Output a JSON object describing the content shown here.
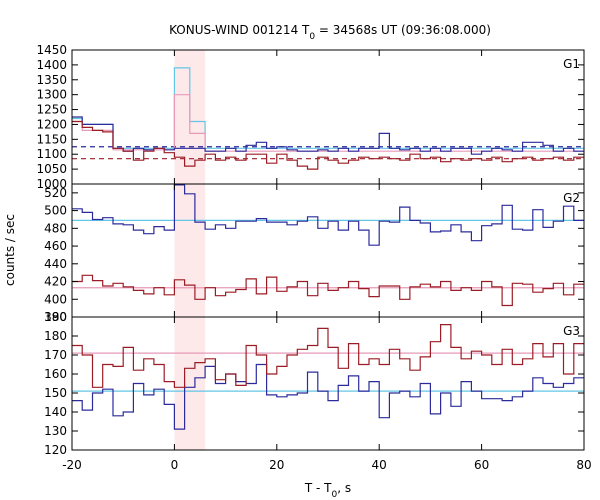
{
  "chart_data": {
    "type": "line",
    "title": "KONUS-WIND 001214 T",
    "title_sub": "0",
    "title_rest": " = 34568s UT (09:36:08.000)",
    "xlabel": "T - T",
    "xlabel_sub": "0",
    "xlabel_rest": ", s",
    "ylabel": "counts / sec",
    "xlim": [
      -20,
      80
    ],
    "xticks": [
      -20,
      0,
      20,
      40,
      60,
      80
    ],
    "highlight": {
      "x0": 0,
      "x1": 6,
      "color": "#fde8ea"
    },
    "colors": {
      "blue": "#2b2b9c",
      "red": "#9c1c25",
      "cyan": "#63c6e6",
      "pink": "#e79ab8"
    },
    "panels": [
      {
        "label": "G1",
        "ylim": [
          1000,
          1450
        ],
        "yticks": [
          1000,
          1050,
          1100,
          1150,
          1200,
          1250,
          1300,
          1350,
          1400,
          1450
        ],
        "bkg": [
          {
            "value": 1125,
            "color": "blue",
            "dashed": true
          },
          {
            "value": 1085,
            "color": "red",
            "dashed": true
          }
        ],
        "series": [
          {
            "color": "cyan",
            "edges": [
              -20,
              -18,
              -12,
              0,
              3,
              6,
              80
            ],
            "values": [
              1220,
              1200,
              1120,
              1390,
              1210,
              1120
            ]
          },
          {
            "color": "pink",
            "edges": [
              -20,
              -18,
              -12,
              0,
              3,
              6,
              80
            ],
            "values": [
              1210,
              1180,
              1115,
              1300,
              1170,
              1110
            ]
          },
          {
            "color": "blue",
            "edges": [
              -20,
              -18,
              -16,
              -14,
              -12,
              -10,
              -8,
              -6,
              -4,
              -2,
              0,
              2,
              4,
              6,
              8,
              10,
              12,
              14,
              16,
              18,
              20,
              22,
              24,
              26,
              28,
              30,
              32,
              34,
              36,
              38,
              40,
              42,
              44,
              46,
              48,
              50,
              52,
              54,
              56,
              58,
              60,
              62,
              64,
              66,
              68,
              70,
              72,
              74,
              76,
              78,
              80
            ],
            "values": [
              1225,
              1200,
              1200,
              1200,
              1120,
              1110,
              1120,
              1115,
              1120,
              1115,
              1120,
              1120,
              1120,
              1110,
              1110,
              1120,
              1110,
              1130,
              1140,
              1120,
              1125,
              1115,
              1110,
              1110,
              1115,
              1110,
              1120,
              1110,
              1120,
              1120,
              1170,
              1120,
              1115,
              1120,
              1110,
              1120,
              1110,
              1120,
              1120,
              1100,
              1110,
              1120,
              1115,
              1110,
              1140,
              1140,
              1130,
              1110,
              1120,
              1110
            ]
          },
          {
            "color": "red",
            "edges": [
              -20,
              -18,
              -16,
              -14,
              -12,
              -10,
              -8,
              -6,
              -4,
              -2,
              0,
              2,
              4,
              6,
              8,
              10,
              12,
              14,
              16,
              18,
              20,
              22,
              24,
              26,
              28,
              30,
              32,
              34,
              36,
              38,
              40,
              42,
              44,
              46,
              48,
              50,
              52,
              54,
              56,
              58,
              60,
              62,
              64,
              66,
              68,
              70,
              72,
              74,
              76,
              78,
              80
            ],
            "values": [
              1210,
              1190,
              1180,
              1175,
              1120,
              1110,
              1080,
              1110,
              1120,
              1105,
              1090,
              1060,
              1080,
              1100,
              1080,
              1090,
              1080,
              1100,
              1100,
              1070,
              1100,
              1080,
              1060,
              1050,
              1090,
              1080,
              1070,
              1080,
              1090,
              1085,
              1090,
              1085,
              1080,
              1100,
              1085,
              1090,
              1075,
              1085,
              1080,
              1085,
              1080,
              1090,
              1075,
              1085,
              1090,
              1080,
              1085,
              1090,
              1080,
              1090
            ]
          }
        ]
      },
      {
        "label": "G2",
        "ylim": [
          380,
          530
        ],
        "yticks": [
          380,
          400,
          420,
          440,
          460,
          480,
          500,
          520
        ],
        "bkg": [
          {
            "value": 489,
            "color": "cyan",
            "dashed": false
          },
          {
            "value": 413,
            "color": "pink",
            "dashed": false
          }
        ],
        "series": [
          {
            "color": "blue",
            "edges": [
              -20,
              -18,
              -16,
              -14,
              -12,
              -10,
              -8,
              -6,
              -4,
              -2,
              0,
              2,
              4,
              6,
              8,
              10,
              12,
              14,
              16,
              18,
              20,
              22,
              24,
              26,
              28,
              30,
              32,
              34,
              36,
              38,
              40,
              42,
              44,
              46,
              48,
              50,
              52,
              54,
              56,
              58,
              60,
              62,
              64,
              66,
              68,
              70,
              72,
              74,
              76,
              78,
              80
            ],
            "values": [
              502,
              498,
              490,
              492,
              485,
              484,
              478,
              474,
              482,
              478,
              529,
              519,
              487,
              479,
              484,
              480,
              488,
              488,
              491,
              487,
              487,
              484,
              488,
              493,
              480,
              488,
              478,
              488,
              478,
              461,
              488,
              487,
              504,
              489,
              486,
              476,
              477,
              484,
              476,
              466,
              483,
              485,
              506,
              479,
              478,
              501,
              481,
              488,
              505,
              489
            ]
          },
          {
            "color": "red",
            "edges": [
              -20,
              -18,
              -16,
              -14,
              -12,
              -10,
              -8,
              -6,
              -4,
              -2,
              0,
              2,
              4,
              6,
              8,
              10,
              12,
              14,
              16,
              18,
              20,
              22,
              24,
              26,
              28,
              30,
              32,
              34,
              36,
              38,
              40,
              42,
              44,
              46,
              48,
              50,
              52,
              54,
              56,
              58,
              60,
              62,
              64,
              66,
              68,
              70,
              72,
              74,
              76,
              78,
              80
            ],
            "values": [
              420,
              427,
              421,
              415,
              418,
              414,
              410,
              406,
              413,
              405,
              422,
              416,
              400,
              413,
              404,
              408,
              411,
              423,
              406,
              425,
              409,
              414,
              420,
              404,
              418,
              410,
              413,
              420,
              412,
              403,
              415,
              415,
              400,
              414,
              417,
              414,
              420,
              410,
              413,
              410,
              420,
              414,
              393,
              418,
              417,
              408,
              412,
              418,
              405,
              417
            ]
          }
        ]
      },
      {
        "label": "G3",
        "ylim": [
          120,
          190
        ],
        "yticks": [
          120,
          130,
          140,
          150,
          160,
          170,
          180,
          190
        ],
        "bkg": [
          {
            "value": 151,
            "color": "cyan",
            "dashed": false
          },
          {
            "value": 171,
            "color": "pink",
            "dashed": false
          }
        ],
        "series": [
          {
            "color": "blue",
            "edges": [
              -20,
              -18,
              -16,
              -14,
              -12,
              -10,
              -8,
              -6,
              -4,
              -2,
              0,
              2,
              4,
              6,
              8,
              10,
              12,
              14,
              16,
              18,
              20,
              22,
              24,
              26,
              28,
              30,
              32,
              34,
              36,
              38,
              40,
              42,
              44,
              46,
              48,
              50,
              52,
              54,
              56,
              58,
              60,
              62,
              64,
              66,
              68,
              70,
              72,
              74,
              76,
              78,
              80
            ],
            "values": [
              146,
              141,
              150,
              152,
              138,
              140,
              155,
              149,
              152,
              144,
              131,
              153,
              158,
              164,
              155,
              160,
              156,
              155,
              165,
              149,
              148,
              149,
              150,
              161,
              151,
              146,
              154,
              159,
              151,
              156,
              137,
              150,
              151,
              148,
              155,
              139,
              150,
              143,
              156,
              151,
              147,
              147,
              146,
              148,
              151,
              158,
              155,
              153,
              155,
              158
            ]
          },
          {
            "color": "red",
            "edges": [
              -20,
              -18,
              -16,
              -14,
              -12,
              -10,
              -8,
              -6,
              -4,
              -2,
              0,
              2,
              4,
              6,
              8,
              10,
              12,
              14,
              16,
              18,
              20,
              22,
              24,
              26,
              28,
              30,
              32,
              34,
              36,
              38,
              40,
              42,
              44,
              46,
              48,
              50,
              52,
              54,
              56,
              58,
              60,
              62,
              64,
              66,
              68,
              70,
              72,
              74,
              76,
              78,
              80
            ],
            "values": [
              175,
              170,
              153,
              165,
              164,
              174,
              162,
              168,
              165,
              156,
              153,
              163,
              166,
              168,
              157,
              160,
              154,
              175,
              170,
              160,
              164,
              170,
              173,
              175,
              184,
              174,
              163,
              176,
              165,
              168,
              165,
              173,
              168,
              162,
              169,
              177,
              186,
              174,
              168,
              172,
              170,
              165,
              173,
              165,
              168,
              176,
              169,
              176,
              160,
              176
            ]
          }
        ]
      }
    ]
  }
}
